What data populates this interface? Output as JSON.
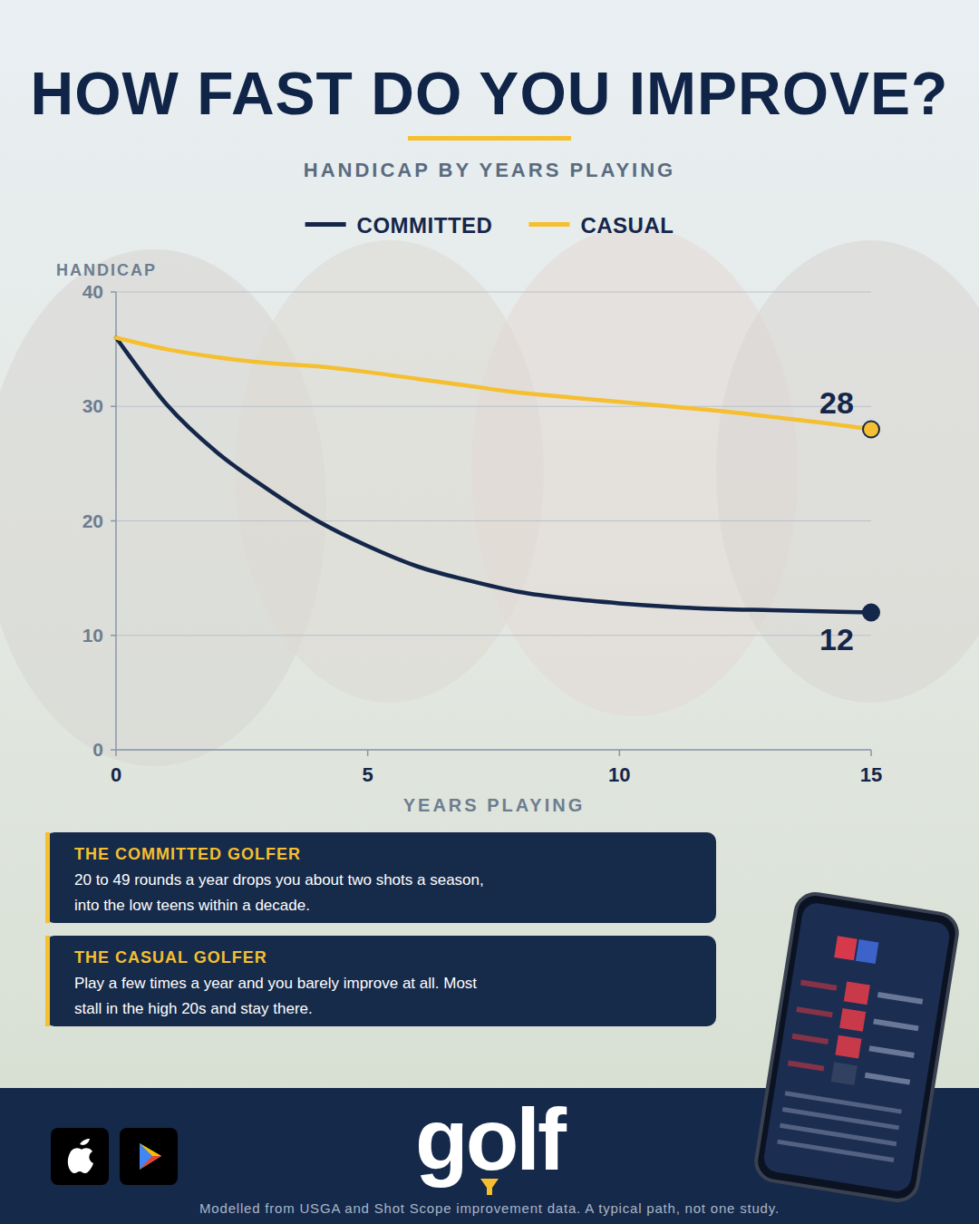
{
  "chart_data": {
    "type": "line",
    "title": "HOW FAST DO YOU IMPROVE?",
    "subtitle": "HANDICAP BY YEARS PLAYING",
    "x_label": "YEARS PLAYING",
    "y_label": "HANDICAP",
    "x": [
      0,
      1,
      2,
      3,
      4,
      5,
      6,
      7,
      8,
      9,
      10,
      11,
      12,
      13,
      14,
      15
    ],
    "xlim": [
      0,
      15
    ],
    "xticks": [
      0,
      5,
      10,
      15
    ],
    "ylim": [
      0,
      40
    ],
    "yticks": [
      0,
      10,
      20,
      30,
      40
    ],
    "grid": true,
    "legend": "top",
    "data_labels": true,
    "series": [
      {
        "name": "COMMITTED",
        "color": "#14264a",
        "values": [
          36,
          30.2,
          26,
          22.8,
          20,
          17.8,
          16,
          14.8,
          13.8,
          13.2,
          12.8,
          12.5,
          12.3,
          12.2,
          12.1,
          12
        ],
        "value_labels": [
          null,
          null,
          null,
          null,
          null,
          null,
          null,
          null,
          null,
          null,
          null,
          null,
          null,
          null,
          null,
          "12"
        ]
      },
      {
        "name": "CASUAL",
        "color": "#f5bf2f",
        "values": [
          36,
          35,
          34.3,
          33.8,
          33.5,
          33,
          32.4,
          31.8,
          31.2,
          30.8,
          30.4,
          30,
          29.6,
          29.1,
          28.6,
          28
        ],
        "value_labels": [
          null,
          null,
          null,
          null,
          null,
          null,
          null,
          null,
          null,
          null,
          null,
          null,
          null,
          null,
          null,
          "28"
        ]
      }
    ],
    "annotations": [
      {
        "title": "THE COMMITTED GOLFER",
        "text": "20 to 49 rounds a year drops you about two shots a season, into the low teens within a decade."
      },
      {
        "title": "THE CASUAL GOLFER",
        "text": "Play a few times a year and you barely improve at all. Most stall in the high 20s and stay there."
      }
    ],
    "brand": "golf",
    "source": "Modelled from USGA and Shot Scope improvement data. A typical path, not one study."
  }
}
